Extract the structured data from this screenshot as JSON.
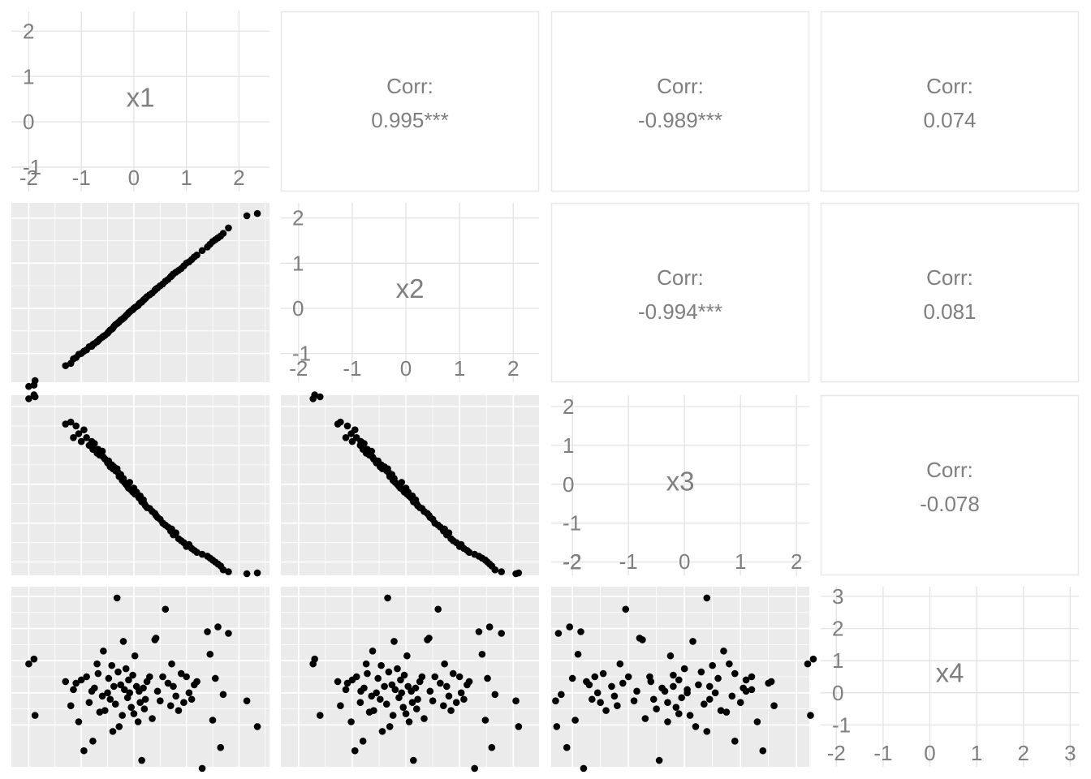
{
  "chart_data": {
    "type": "scatter",
    "layout": "pairs-matrix",
    "variables": [
      "x1",
      "x2",
      "x3",
      "x4"
    ],
    "corr_label": "Corr:",
    "correlations": [
      {
        "row": 0,
        "col": 1,
        "pair": [
          "x1",
          "x2"
        ],
        "value": "0.995***"
      },
      {
        "row": 0,
        "col": 2,
        "pair": [
          "x1",
          "x3"
        ],
        "value": "-0.989***"
      },
      {
        "row": 0,
        "col": 3,
        "pair": [
          "x1",
          "x4"
        ],
        "value": "0.074"
      },
      {
        "row": 1,
        "col": 2,
        "pair": [
          "x2",
          "x3"
        ],
        "value": "-0.994***"
      },
      {
        "row": 1,
        "col": 3,
        "pair": [
          "x2",
          "x4"
        ],
        "value": "0.081"
      },
      {
        "row": 2,
        "col": 3,
        "pair": [
          "x3",
          "x4"
        ],
        "value": "-0.078"
      }
    ],
    "diagonal": [
      {
        "var": "x1",
        "xticks": [
          "-2",
          "-1",
          "0",
          "1",
          "2"
        ],
        "yticks": [
          "-1",
          "0",
          "1",
          "2"
        ],
        "xlim": [
          -2.3,
          2.55
        ],
        "ylim": [
          -1.5,
          2.4
        ]
      },
      {
        "var": "x2",
        "xticks": [
          "-2",
          "-1",
          "0",
          "1",
          "2"
        ],
        "yticks": [
          "-1",
          "0",
          "1",
          "2"
        ],
        "xlim": [
          -2.3,
          2.45
        ],
        "ylim": [
          -1.6,
          2.3
        ]
      },
      {
        "var": "x3",
        "xticks": [
          "-2",
          "-1",
          "0",
          "1",
          "2"
        ],
        "yticks": [
          "-2",
          "-1",
          "0",
          "1",
          "2"
        ],
        "xlim": [
          -2.35,
          2.2
        ],
        "ylim": [
          -2.3,
          2.25
        ]
      },
      {
        "var": "x4",
        "xticks": [
          "-2",
          "-1",
          "0",
          "1",
          "2",
          "3"
        ],
        "yticks": [
          "-1",
          "0",
          "1",
          "2",
          "3"
        ],
        "xlim": [
          -2.3,
          3.15
        ],
        "ylim": [
          -2.25,
          3.25
        ]
      }
    ],
    "points": {
      "x1": [
        -2.0,
        -1.9,
        -1.88,
        -1.3,
        -1.2,
        -1.15,
        -1.1,
        -1.05,
        -1.0,
        -0.95,
        -0.9,
        -0.85,
        -0.8,
        -0.78,
        -0.75,
        -0.7,
        -0.68,
        -0.65,
        -0.6,
        -0.58,
        -0.55,
        -0.5,
        -0.48,
        -0.45,
        -0.42,
        -0.4,
        -0.38,
        -0.35,
        -0.32,
        -0.3,
        -0.28,
        -0.25,
        -0.22,
        -0.2,
        -0.18,
        -0.15,
        -0.12,
        -0.1,
        -0.08,
        -0.05,
        -0.02,
        0.0,
        0.02,
        0.05,
        0.08,
        0.1,
        0.12,
        0.15,
        0.18,
        0.2,
        0.22,
        0.25,
        0.3,
        0.35,
        0.4,
        0.42,
        0.45,
        0.5,
        0.55,
        0.6,
        0.65,
        0.7,
        0.72,
        0.75,
        0.8,
        0.85,
        0.9,
        0.95,
        1.0,
        1.05,
        1.1,
        1.15,
        1.2,
        1.3,
        1.4,
        1.45,
        1.5,
        1.55,
        1.6,
        1.65,
        1.7,
        1.8,
        2.15,
        2.35
      ],
      "x2": [
        -1.73,
        -1.7,
        -1.6,
        -1.27,
        -1.22,
        -1.12,
        -1.09,
        -1.02,
        -1.0,
        -0.95,
        -0.92,
        -0.85,
        -0.84,
        -0.8,
        -0.78,
        -0.74,
        -0.72,
        -0.68,
        -0.64,
        -0.62,
        -0.6,
        -0.55,
        -0.52,
        -0.48,
        -0.46,
        -0.44,
        -0.4,
        -0.36,
        -0.34,
        -0.32,
        -0.3,
        -0.26,
        -0.24,
        -0.22,
        -0.2,
        -0.16,
        -0.13,
        -0.1,
        -0.08,
        -0.05,
        -0.03,
        0.0,
        0.02,
        0.04,
        0.06,
        0.1,
        0.12,
        0.14,
        0.18,
        0.2,
        0.22,
        0.26,
        0.3,
        0.34,
        0.4,
        0.43,
        0.45,
        0.5,
        0.54,
        0.6,
        0.64,
        0.7,
        0.72,
        0.76,
        0.8,
        0.84,
        0.88,
        0.94,
        1.0,
        1.03,
        1.08,
        1.14,
        1.18,
        1.28,
        1.36,
        1.42,
        1.48,
        1.52,
        1.56,
        1.6,
        1.66,
        1.78,
        2.05,
        2.1
      ],
      "x3": [
        2.2,
        2.3,
        2.25,
        1.55,
        1.6,
        1.2,
        1.5,
        1.3,
        1.1,
        1.4,
        1.2,
        1.0,
        1.1,
        0.9,
        1.05,
        0.8,
        0.9,
        0.75,
        0.85,
        0.7,
        0.65,
        0.55,
        0.6,
        0.45,
        0.5,
        0.4,
        0.45,
        0.35,
        0.4,
        0.3,
        0.2,
        0.25,
        0.1,
        0.15,
        0.05,
        0.0,
        -0.05,
        -0.1,
        0.05,
        -0.15,
        -0.2,
        -0.1,
        -0.25,
        -0.2,
        -0.3,
        -0.35,
        -0.3,
        -0.45,
        -0.4,
        -0.5,
        -0.55,
        -0.6,
        -0.62,
        -0.7,
        -0.75,
        -0.8,
        -0.85,
        -0.9,
        -1.0,
        -1.05,
        -1.1,
        -1.2,
        -1.15,
        -1.3,
        -1.25,
        -1.4,
        -1.45,
        -1.5,
        -1.6,
        -1.55,
        -1.65,
        -1.7,
        -1.75,
        -1.8,
        -1.85,
        -1.9,
        -1.95,
        -2.0,
        -2.05,
        -2.1,
        -2.2,
        -2.25,
        -2.3,
        -2.28
      ],
      "x4": [
        0.9,
        1.05,
        -0.7,
        0.35,
        -0.4,
        0.1,
        0.3,
        -0.9,
        0.4,
        -1.8,
        0.5,
        -0.3,
        0.05,
        -1.5,
        0.15,
        0.9,
        0.6,
        -0.6,
        -0.1,
        1.3,
        -0.55,
        0.0,
        0.45,
        -0.2,
        0.85,
        -1.2,
        0.2,
        -0.35,
        2.95,
        0.65,
        -1.05,
        0.25,
        -0.7,
        1.6,
        0.1,
        0.75,
        -0.15,
        0.4,
        0.0,
        -0.45,
        0.55,
        -0.65,
        1.15,
        0.2,
        -0.9,
        0.05,
        -0.3,
        -2.1,
        0.15,
        -0.5,
        -0.2,
        0.35,
        0.5,
        -0.8,
        1.65,
        1.7,
        0.05,
        -0.25,
        0.5,
        2.6,
        0.3,
        -0.4,
        0.9,
        0.2,
        -0.1,
        -0.55,
        0.6,
        -0.3,
        0.5,
        0.0,
        -0.2,
        0.25,
        0.35,
        -2.35,
        1.9,
        1.2,
        -0.85,
        0.45,
        2.05,
        -1.7,
        -0.05,
        1.85,
        -0.25,
        -1.05
      ]
    }
  }
}
